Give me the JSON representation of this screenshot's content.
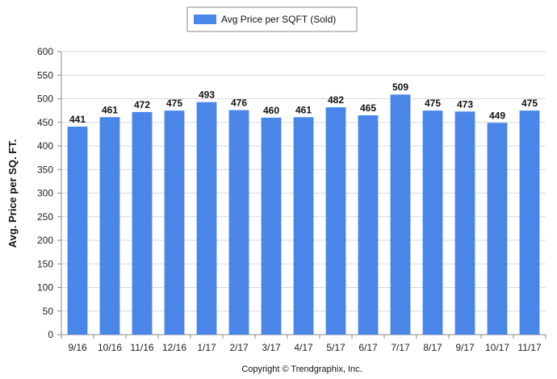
{
  "chart_data": {
    "type": "bar",
    "categories": [
      "9/16",
      "10/16",
      "11/16",
      "12/16",
      "1/17",
      "2/17",
      "3/17",
      "4/17",
      "5/17",
      "6/17",
      "7/17",
      "8/17",
      "9/17",
      "10/17",
      "11/17"
    ],
    "series": [
      {
        "name": "Avg Price per SQFT (Sold)",
        "values": [
          441,
          461,
          472,
          475,
          493,
          476,
          460,
          461,
          482,
          465,
          509,
          475,
          473,
          449,
          475
        ]
      }
    ],
    "ylabel": "Avg. Price per SQ. FT.",
    "xlabel": "",
    "ylim": [
      0,
      600
    ],
    "yticks": [
      0,
      50,
      100,
      150,
      200,
      250,
      300,
      350,
      400,
      450,
      500,
      550,
      600
    ],
    "grid": true,
    "legend": "top-center",
    "data_labels": true,
    "colors": {
      "bar": "#4a86e8",
      "grid": "#d9d9d9",
      "axis": "#888888"
    }
  },
  "footer": {
    "copyright": "Copyright © Trendgraphix, Inc."
  }
}
